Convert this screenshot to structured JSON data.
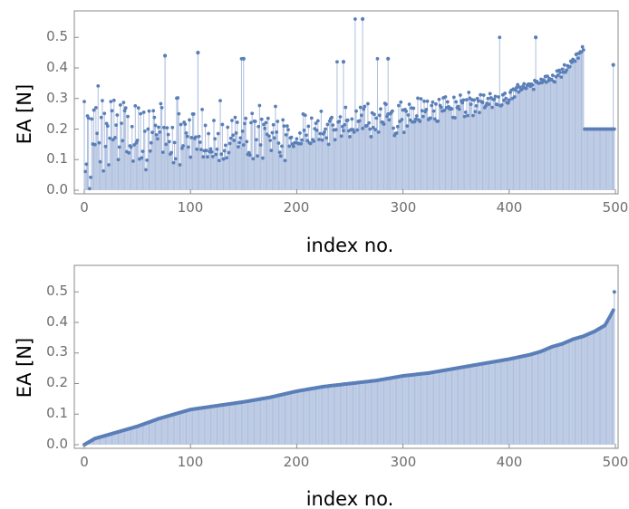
{
  "colors": {
    "point": "#5a7fb8",
    "stem": "#aebfde",
    "axis": "#8a8a8a",
    "tick_text": "#6e6e6e"
  },
  "chart_data": [
    {
      "type": "scatter",
      "style": "stem",
      "xlabel": "index no.",
      "ylabel": "EA [N]",
      "xlim": [
        0,
        500
      ],
      "ylim": [
        0,
        0.57
      ],
      "xticks": [
        0,
        100,
        200,
        300,
        400,
        500
      ],
      "yticks": [
        0.0,
        0.1,
        0.2,
        0.3,
        0.4,
        0.5
      ],
      "ytick_labels": [
        "0.0",
        "0.1",
        "0.2",
        "0.3",
        "0.4",
        "0.5"
      ],
      "n_points": 500,
      "grid": false,
      "highlighted_points": [
        {
          "x": 262,
          "y": 0.56
        },
        {
          "x": 425,
          "y": 0.5
        },
        {
          "x": 107,
          "y": 0.45
        },
        {
          "x": 76,
          "y": 0.44
        },
        {
          "x": 498,
          "y": 0.41
        },
        {
          "x": 150,
          "y": 0.43
        },
        {
          "x": 244,
          "y": 0.42
        },
        {
          "x": 286,
          "y": 0.43
        }
      ],
      "values": [
        0.29,
        0.061,
        0.085,
        0.243,
        0.236,
        0.005,
        0.042,
        0.233,
        0.151,
        0.262,
        0.149,
        0.27,
        0.186,
        0.341,
        0.155,
        0.093,
        0.238,
        0.293,
        0.063,
        0.251,
        0.143,
        0.218,
        0.21,
        0.083,
        0.17,
        0.29,
        0.26,
        0.165,
        0.294,
        0.172,
        0.213,
        0.246,
        0.1,
        0.141,
        0.279,
        0.219,
        0.162,
        0.287,
        0.26,
        0.269,
        0.126,
        0.241,
        0.122,
        0.145,
        0.141,
        0.208,
        0.095,
        0.148,
        0.276,
        0.155,
        0.163,
        0.269,
        0.102,
        0.25,
        0.106,
        0.127,
        0.255,
        0.193,
        0.067,
        0.098,
        0.2,
        0.259,
        0.128,
        0.155,
        0.189,
        0.26,
        0.238,
        0.212,
        0.181,
        0.168,
        0.206,
        0.19,
        0.283,
        0.27,
        0.124,
        0.205,
        0.44,
        0.15,
        0.204,
        0.182,
        0.159,
        0.118,
        0.123,
        0.205,
        0.09,
        0.156,
        0.103,
        0.301,
        0.302,
        0.25,
        0.083,
        0.215,
        0.137,
        0.145,
        0.222,
        0.216,
        0.187,
        0.176,
        0.141,
        0.23,
        0.108,
        0.172,
        0.249,
        0.249,
        0.169,
        0.174,
        0.134,
        0.45,
        0.176,
        0.157,
        0.133,
        0.264,
        0.109,
        0.129,
        0.212,
        0.13,
        0.109,
        0.185,
        0.126,
        0.135,
        0.125,
        0.11,
        0.228,
        0.168,
        0.117,
        0.134,
        0.185,
        0.097,
        0.293,
        0.118,
        0.215,
        0.102,
        0.129,
        0.147,
        0.106,
        0.206,
        0.123,
        0.153,
        0.17,
        0.228,
        0.18,
        0.163,
        0.238,
        0.187,
        0.222,
        0.142,
        0.156,
        0.171,
        0.43,
        0.193,
        0.148,
        0.218,
        0.235,
        0.159,
        0.117,
        0.123,
        0.115,
        0.221,
        0.251,
        0.103,
        0.226,
        0.225,
        0.165,
        0.112,
        0.208,
        0.277,
        0.148,
        0.232,
        0.105,
        0.215,
        0.202,
        0.221,
        0.183,
        0.235,
        0.177,
        0.163,
        0.13,
        0.188,
        0.214,
        0.171,
        0.274,
        0.19,
        0.225,
        0.154,
        0.124,
        0.112,
        0.144,
        0.23,
        0.21,
        0.097,
        0.181,
        0.21,
        0.198,
        0.144,
        0.171,
        0.173,
        0.151,
        0.143,
        0.155,
        0.156,
        0.168,
        0.154,
        0.152,
        0.187,
        0.152,
        0.164,
        0.249,
        0.196,
        0.245,
        0.18,
        0.162,
        0.209,
        0.155,
        0.153,
        0.236,
        0.165,
        0.16,
        0.201,
        0.219,
        0.196,
        0.227,
        0.166,
        0.185,
        0.258,
        0.164,
        0.184,
        0.19,
        0.2,
        0.171,
        0.215,
        0.15,
        0.226,
        0.234,
        0.238,
        0.213,
        0.197,
        0.165,
        0.198,
        0.42,
        0.223,
        0.225,
        0.24,
        0.177,
        0.208,
        0.195,
        0.214,
        0.271,
        0.228,
        0.229,
        0.194,
        0.175,
        0.198,
        0.233,
        0.198,
        0.19,
        0.56,
        0.259,
        0.197,
        0.225,
        0.227,
        0.271,
        0.245,
        0.202,
        0.265,
        0.274,
        0.21,
        0.211,
        0.283,
        0.22,
        0.2,
        0.175,
        0.253,
        0.205,
        0.248,
        0.198,
        0.236,
        0.43,
        0.19,
        0.245,
        0.266,
        0.223,
        0.222,
        0.216,
        0.284,
        0.281,
        0.241,
        0.249,
        0.23,
        0.25,
        0.254,
        0.259,
        0.203,
        0.179,
        0.185,
        0.187,
        0.208,
        0.277,
        0.225,
        0.288,
        0.231,
        0.262,
        0.189,
        0.264,
        0.258,
        0.21,
        0.246,
        0.281,
        0.229,
        0.269,
        0.223,
        0.268,
        0.224,
        0.232,
        0.243,
        0.301,
        0.23,
        0.225,
        0.299,
        0.26,
        0.241,
        0.291,
        0.257,
        0.264,
        0.291,
        0.231,
        0.235,
        0.236,
        0.277,
        0.288,
        0.259,
        0.233,
        0.282,
        0.225,
        0.226,
        0.297,
        0.277,
        0.271,
        0.259,
        0.302,
        0.261,
        0.305,
        0.27,
        0.289,
        0.273,
        0.265,
        0.268,
        0.266,
        0.238,
        0.304,
        0.237,
        0.289,
        0.27,
        0.274,
        0.265,
        0.311,
        0.292,
        0.286,
        0.295,
        0.241,
        0.255,
        0.296,
        0.244,
        0.32,
        0.301,
        0.281,
        0.296,
        0.244,
        0.295,
        0.257,
        0.276,
        0.3,
        0.292,
        0.254,
        0.312,
        0.29,
        0.287,
        0.311,
        0.27,
        0.276,
        0.284,
        0.3,
        0.281,
        0.316,
        0.302,
        0.271,
        0.297,
        0.297,
        0.307,
        0.281,
        0.28,
        0.305,
        0.5,
        0.276,
        0.279,
        0.312,
        0.294,
        0.317,
        0.3,
        0.287,
        0.285,
        0.295,
        0.32,
        0.327,
        0.3,
        0.331,
        0.305,
        0.327,
        0.336,
        0.345,
        0.321,
        0.337,
        0.328,
        0.33,
        0.34,
        0.348,
        0.334,
        0.333,
        0.343,
        0.347,
        0.347,
        0.34,
        0.347,
        0.344,
        0.33,
        0.359,
        0.355,
        0.356,
        0.351,
        0.35,
        0.351,
        0.363,
        0.352,
        0.361,
        0.358,
        0.372,
        0.353,
        0.373,
        0.358,
        0.365,
        0.361,
        0.362,
        0.376,
        0.356,
        0.354,
        0.371,
        0.39,
        0.376,
        0.392,
        0.385,
        0.37,
        0.396,
        0.386,
        0.41,
        0.386,
        0.393,
        0.407,
        0.403,
        0.404,
        0.422,
        0.418,
        0.428,
        0.424,
        0.422,
        0.444,
        0.446,
        0.432,
        0.448,
        0.453,
        0.452,
        0.469,
        0.459
      ]
    },
    {
      "type": "scatter",
      "style": "stem",
      "sorted": "ascending",
      "xlabel": "index no.",
      "ylabel": "EA [N]",
      "xlim": [
        0,
        500
      ],
      "ylim": [
        0,
        0.57
      ],
      "xticks": [
        0,
        100,
        200,
        300,
        400,
        500
      ],
      "yticks": [
        0.0,
        0.1,
        0.2,
        0.3,
        0.4,
        0.5
      ],
      "ytick_labels": [
        "0.0",
        "0.1",
        "0.2",
        "0.3",
        "0.4",
        "0.5"
      ],
      "n_points": 500,
      "grid": false,
      "curve_samples": {
        "x": [
          0,
          5,
          10,
          20,
          30,
          40,
          50,
          70,
          90,
          100,
          120,
          150,
          175,
          200,
          225,
          250,
          275,
          300,
          325,
          350,
          375,
          400,
          420,
          430,
          440,
          450,
          460,
          470,
          480,
          490,
          495,
          498,
          499,
          500
        ],
        "y": [
          0.0,
          0.01,
          0.02,
          0.03,
          0.04,
          0.05,
          0.06,
          0.085,
          0.105,
          0.115,
          0.125,
          0.14,
          0.155,
          0.175,
          0.19,
          0.2,
          0.21,
          0.225,
          0.235,
          0.25,
          0.265,
          0.28,
          0.295,
          0.305,
          0.32,
          0.33,
          0.345,
          0.355,
          0.37,
          0.39,
          0.42,
          0.44,
          0.5,
          0.56
        ]
      }
    }
  ],
  "plots": [
    {
      "xlabel": "index no.",
      "ylabel": "EA [N]",
      "xtick_labels": [
        "0",
        "100",
        "200",
        "300",
        "400",
        "500"
      ],
      "ytick_labels": [
        "0.0",
        "0.1",
        "0.2",
        "0.3",
        "0.4",
        "0.5"
      ]
    },
    {
      "xlabel": "index no.",
      "ylabel": "EA [N]",
      "xtick_labels": [
        "0",
        "100",
        "200",
        "300",
        "400",
        "500"
      ],
      "ytick_labels": [
        "0.0",
        "0.1",
        "0.2",
        "0.3",
        "0.4",
        "0.5"
      ]
    }
  ]
}
